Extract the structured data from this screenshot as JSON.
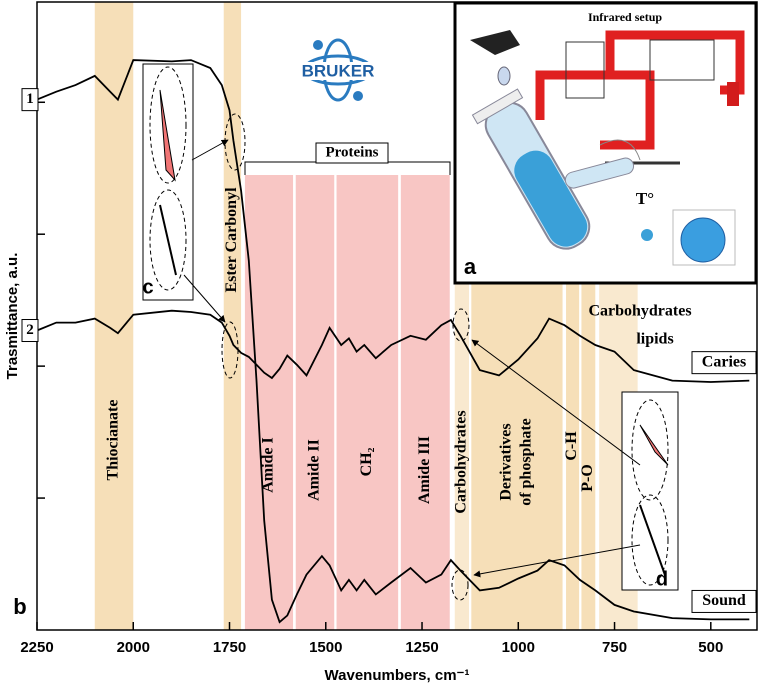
{
  "chart_data": {
    "type": "line",
    "x_label": "Wavenumbers, cm⁻¹",
    "y_label": "Trasmittance, a.u.",
    "xlim": [
      2250,
      380
    ],
    "xticks": [
      2250,
      2000,
      1750,
      1500,
      1250,
      1000,
      750,
      500
    ],
    "ylim": [
      0,
      4.76
    ],
    "yticks": [
      1,
      2,
      3,
      4
    ],
    "x": [
      2250,
      2200,
      2150,
      2100,
      2060,
      2040,
      2000,
      1900,
      1850,
      1800,
      1770,
      1750,
      1740,
      1720,
      1700,
      1680,
      1660,
      1640,
      1620,
      1600,
      1575,
      1550,
      1510,
      1490,
      1460,
      1440,
      1420,
      1400,
      1370,
      1330,
      1280,
      1240,
      1200,
      1175,
      1150,
      1100,
      1050,
      1000,
      950,
      920,
      880,
      840,
      800,
      750,
      700,
      600,
      500,
      400
    ],
    "series": [
      {
        "name": "Sound",
        "marker_label": "1",
        "color": "#000000",
        "values": [
          4.02,
          4.08,
          4.13,
          4.2,
          4.08,
          4.02,
          4.32,
          4.31,
          4.32,
          4.26,
          4.13,
          3.94,
          3.71,
          3.33,
          2.8,
          1.89,
          0.83,
          0.23,
          0.06,
          0.11,
          0.27,
          0.42,
          0.56,
          0.49,
          0.3,
          0.38,
          0.3,
          0.38,
          0.27,
          0.36,
          0.47,
          0.36,
          0.42,
          0.53,
          0.45,
          0.3,
          0.32,
          0.39,
          0.45,
          0.53,
          0.49,
          0.38,
          0.3,
          0.19,
          0.14,
          0.09,
          0.08,
          0.08
        ]
      },
      {
        "name": "Caries",
        "marker_label": "2",
        "color": "#000000",
        "values": [
          2.27,
          2.33,
          2.33,
          2.36,
          2.29,
          2.25,
          2.39,
          2.42,
          2.41,
          2.39,
          2.33,
          2.23,
          2.16,
          2.1,
          2.07,
          2.01,
          1.95,
          1.91,
          1.98,
          2.08,
          2.01,
          1.93,
          2.16,
          2.29,
          2.16,
          2.21,
          2.11,
          2.16,
          2.06,
          2.16,
          2.23,
          2.2,
          2.31,
          2.35,
          2.23,
          1.97,
          1.93,
          2.05,
          2.21,
          2.36,
          2.31,
          2.23,
          2.16,
          2.11,
          1.97,
          1.89,
          1.88,
          1.89
        ]
      }
    ],
    "bands": [
      {
        "labels": [
          "Thiocianate"
        ],
        "from": 2100,
        "to": 2000,
        "color": "#f6dfb8"
      },
      {
        "labels": [
          "Ester Carbonyl"
        ],
        "from": 1765,
        "to": 1720,
        "color": "#f6dfb8"
      },
      {
        "labels": [
          "Amide I"
        ],
        "from": 1710,
        "to": 1585,
        "color": "#f8c6c4"
      },
      {
        "labels": [
          "Amide II"
        ],
        "from": 1578,
        "to": 1478,
        "color": "#f8c6c4"
      },
      {
        "labels": [
          "CH₂"
        ],
        "from": 1472,
        "to": 1312,
        "color": "#f8c6c4"
      },
      {
        "labels": [
          "Amide III"
        ],
        "from": 1305,
        "to": 1178,
        "color": "#f8c6c4"
      },
      {
        "labels": [
          "Carbohydrates"
        ],
        "from": 1165,
        "to": 1128,
        "color": "#f9e9cf"
      },
      {
        "labels": [
          "Derivatives",
          "of phosphate"
        ],
        "from": 1122,
        "to": 885,
        "color": "#f6dfb8"
      },
      {
        "labels": [
          "C-H"
        ],
        "from": 876,
        "to": 842,
        "color": "#f6dfb8"
      },
      {
        "labels": [
          "P-O"
        ],
        "from": 836,
        "to": 800,
        "color": "#f6dfb8"
      },
      {
        "labels": [
          "Carbohydrates",
          "lipids"
        ],
        "from": 790,
        "to": 690,
        "color": "#f9e9cf"
      }
    ],
    "annotations": {
      "bracket": "Proteins",
      "logo": "BRUKER",
      "inset_title": "Infrared setup",
      "inset_temperature": "T°",
      "panel_labels": [
        "a",
        "b",
        "c",
        "d"
      ]
    }
  }
}
